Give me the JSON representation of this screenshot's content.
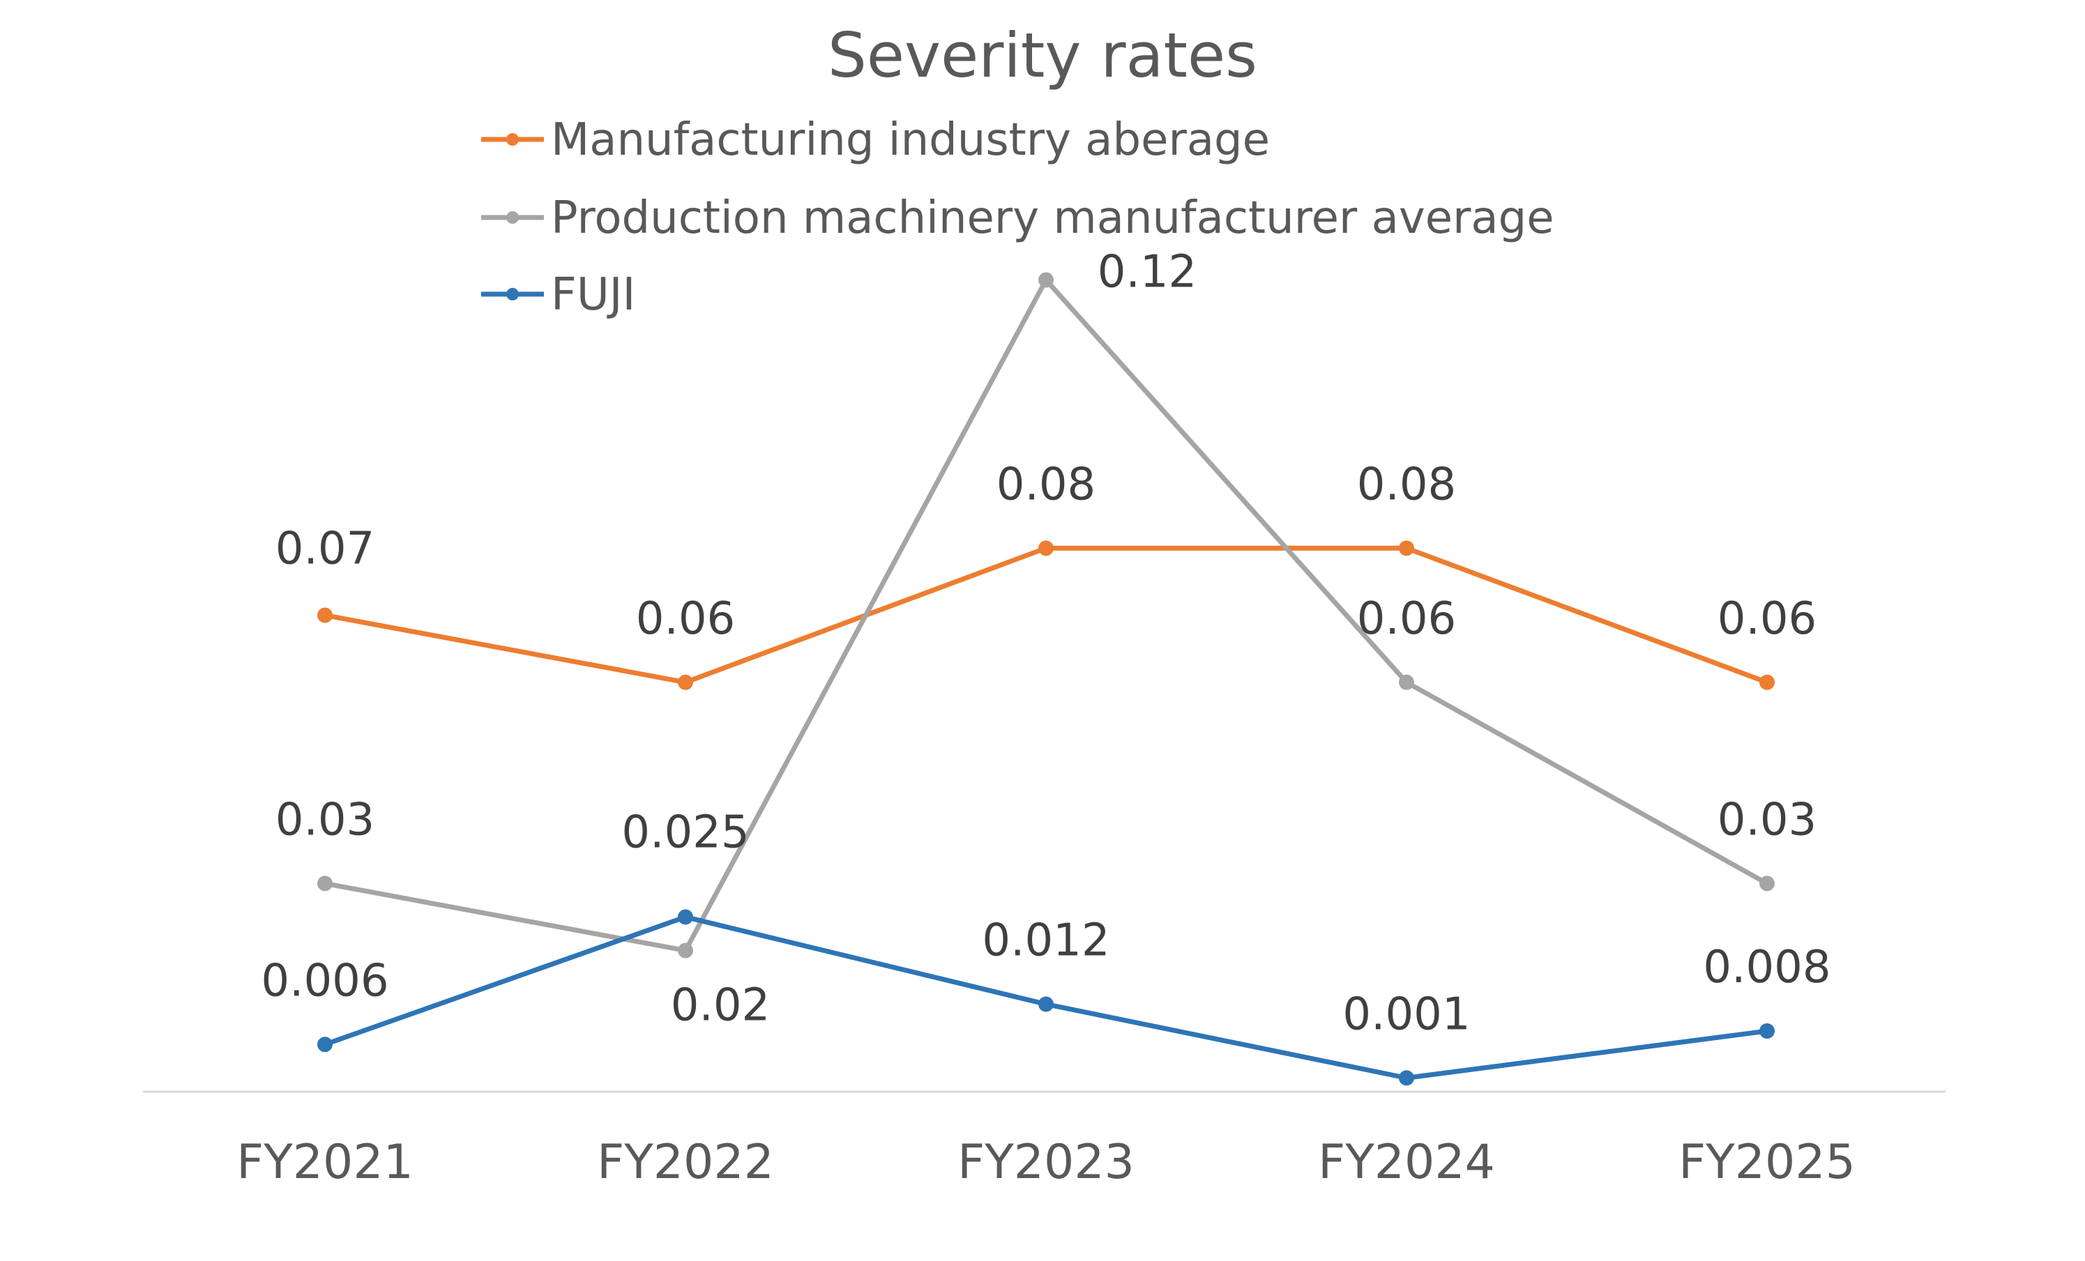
{
  "chart_data": {
    "type": "line",
    "title": "Severity rates",
    "categories": [
      "FY2021",
      "FY2022",
      "FY2023",
      "FY2024",
      "FY2025"
    ],
    "series": [
      {
        "name": "Manufacturing industry aberage",
        "color": "#ED7D31",
        "values": [
          0.07,
          0.06,
          0.08,
          0.08,
          0.06
        ],
        "labels": [
          "0.07",
          "0.06",
          "0.08",
          "0.08",
          "0.06"
        ]
      },
      {
        "name": "Production machinery manufacturer average",
        "color": "#A5A5A5",
        "values": [
          0.03,
          0.02,
          0.12,
          0.06,
          0.03
        ],
        "labels": [
          "0.03",
          "0.02",
          "0.12",
          "0.06",
          "0.03"
        ]
      },
      {
        "name": "FUJI",
        "color": "#2E75B6",
        "values": [
          0.006,
          0.025,
          0.012,
          0.001,
          0.008
        ],
        "labels": [
          "0.006",
          "0.025",
          "0.012",
          "0.001",
          "0.008"
        ]
      }
    ],
    "ylim": [
      0,
      0.12
    ],
    "grid": false,
    "legend": "top"
  }
}
